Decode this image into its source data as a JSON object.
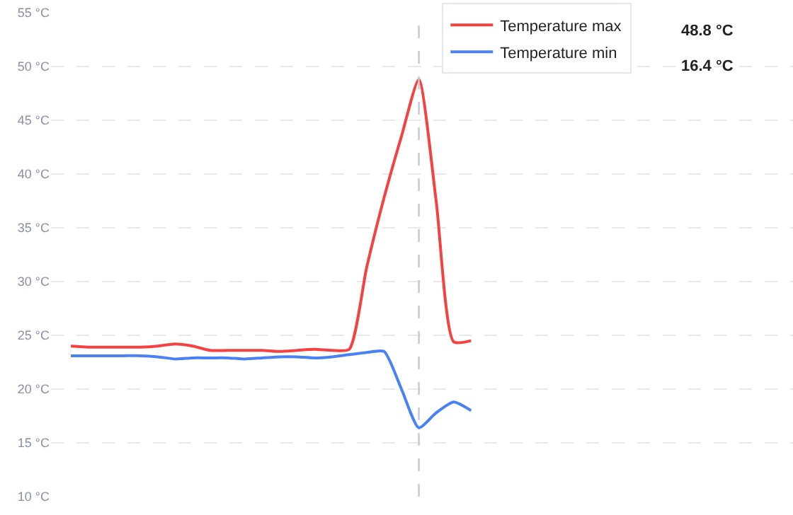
{
  "chart_data": {
    "type": "line",
    "categories": [
      null,
      null,
      null,
      null,
      null,
      null,
      null,
      null,
      null,
      null,
      null,
      null,
      null,
      null,
      null,
      null,
      null,
      null,
      null,
      null,
      null,
      null,
      null,
      null,
      null,
      null,
      null,
      null,
      null,
      null,
      null,
      null,
      null,
      null,
      null,
      null,
      null,
      null,
      null,
      null,
      null,
      null
    ],
    "series": [
      {
        "name": "Temperature max",
        "color": "#f44141",
        "values": [
          24.0,
          23.9,
          23.9,
          23.9,
          23.9,
          24.0,
          24.2,
          24.0,
          23.6,
          23.6,
          23.6,
          23.6,
          23.5,
          23.6,
          23.7,
          23.6,
          23.7,
          31.3,
          37.8,
          43.5,
          48.8,
          37.4,
          24.4,
          24.5,
          null,
          null,
          null,
          null,
          null,
          null,
          null,
          null,
          null,
          null,
          null,
          null,
          null,
          null,
          null,
          null,
          null,
          null
        ]
      },
      {
        "name": "Temperature min",
        "color": "#4a82f5",
        "values": [
          23.1,
          23.1,
          23.1,
          23.1,
          23.1,
          23.0,
          22.8,
          22.9,
          22.9,
          22.9,
          22.8,
          22.9,
          23.0,
          23.0,
          22.9,
          23.0,
          23.2,
          23.4,
          23.5,
          20.0,
          16.4,
          17.8,
          18.8,
          18.0,
          null,
          null,
          null,
          null,
          null,
          null,
          null,
          null,
          null,
          null,
          null,
          null,
          null,
          null,
          null,
          null,
          null,
          null
        ]
      }
    ],
    "ylim": [
      10,
      55
    ],
    "yticks": [
      {
        "value": 10,
        "label": "10 °C"
      },
      {
        "value": 15,
        "label": "15 °C"
      },
      {
        "value": 20,
        "label": "20 °C"
      },
      {
        "value": 25,
        "label": "25 °C"
      },
      {
        "value": 30,
        "label": "30 °C"
      },
      {
        "value": 35,
        "label": "35 °C"
      },
      {
        "value": 40,
        "label": "40 °C"
      },
      {
        "value": 45,
        "label": "45 °C"
      },
      {
        "value": 50,
        "label": "50 °C"
      },
      {
        "value": 55,
        "label": "55 °C"
      }
    ],
    "tick_labels": "y",
    "grid": "y",
    "legend": "top right",
    "annotations": [
      "48.8 °C",
      "16.4 °C"
    ],
    "marker": "none",
    "line_style": "solid"
  }
}
